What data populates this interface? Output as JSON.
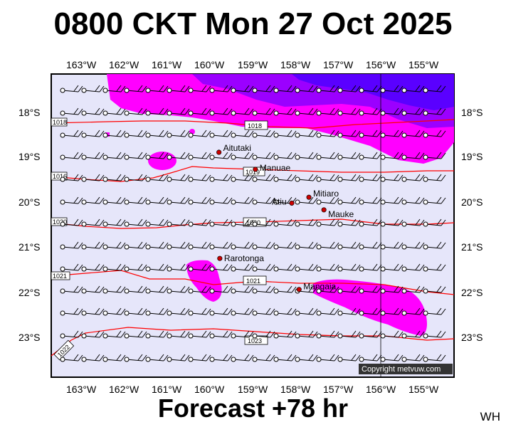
{
  "title": "0800 CKT Mon 27 Oct 2025",
  "footer": "Forecast +78 hr",
  "corner_code": "WH",
  "copyright": "Copyright metvuw.com",
  "colors": {
    "sea": "#e6e6fa",
    "rain_light": "#ff00ff",
    "rain_heavy": "#9b00ff",
    "rain_heaviest": "#5a00ff",
    "isobar": "#ff0000",
    "place_dot": "#cc0000"
  },
  "lon_labels": [
    "163°W",
    "162°W",
    "161°W",
    "160°W",
    "159°W",
    "158°W",
    "157°W",
    "156°W",
    "155°W"
  ],
  "lat_labels": [
    "18°S",
    "19°S",
    "20°S",
    "21°S",
    "22°S",
    "23°S"
  ],
  "places": [
    {
      "name": "Aitutaki",
      "lon": -159.8,
      "lat": -18.87
    },
    {
      "name": "Manuae",
      "lon": -158.95,
      "lat": -19.25
    },
    {
      "name": "Mitiaro",
      "lon": -157.7,
      "lat": -19.87
    },
    {
      "name": "Atiu",
      "lon": -158.1,
      "lat": -20.0
    },
    {
      "name": "Mauke",
      "lon": -157.35,
      "lat": -20.15
    },
    {
      "name": "Rarotonga",
      "lon": -159.78,
      "lat": -21.23
    },
    {
      "name": "Mangaia",
      "lon": -157.93,
      "lat": -21.92
    }
  ],
  "isobars": [
    {
      "label": "1018",
      "label_at": "west"
    },
    {
      "label": "1018",
      "label_at": "mid"
    },
    {
      "label": "1016",
      "label_at": "west"
    },
    {
      "label": "1019",
      "label_at": "mid"
    },
    {
      "label": "1020",
      "label_at": "west"
    },
    {
      "label": "1020",
      "label_at": "mid"
    },
    {
      "label": "1021",
      "label_at": "west"
    },
    {
      "label": "1021",
      "label_at": "mid"
    },
    {
      "label": "1022",
      "label_at": "west"
    },
    {
      "label": "1023",
      "label_at": "mid"
    }
  ],
  "wind": {
    "direction": "westerly",
    "barbs_per_station": 2
  }
}
